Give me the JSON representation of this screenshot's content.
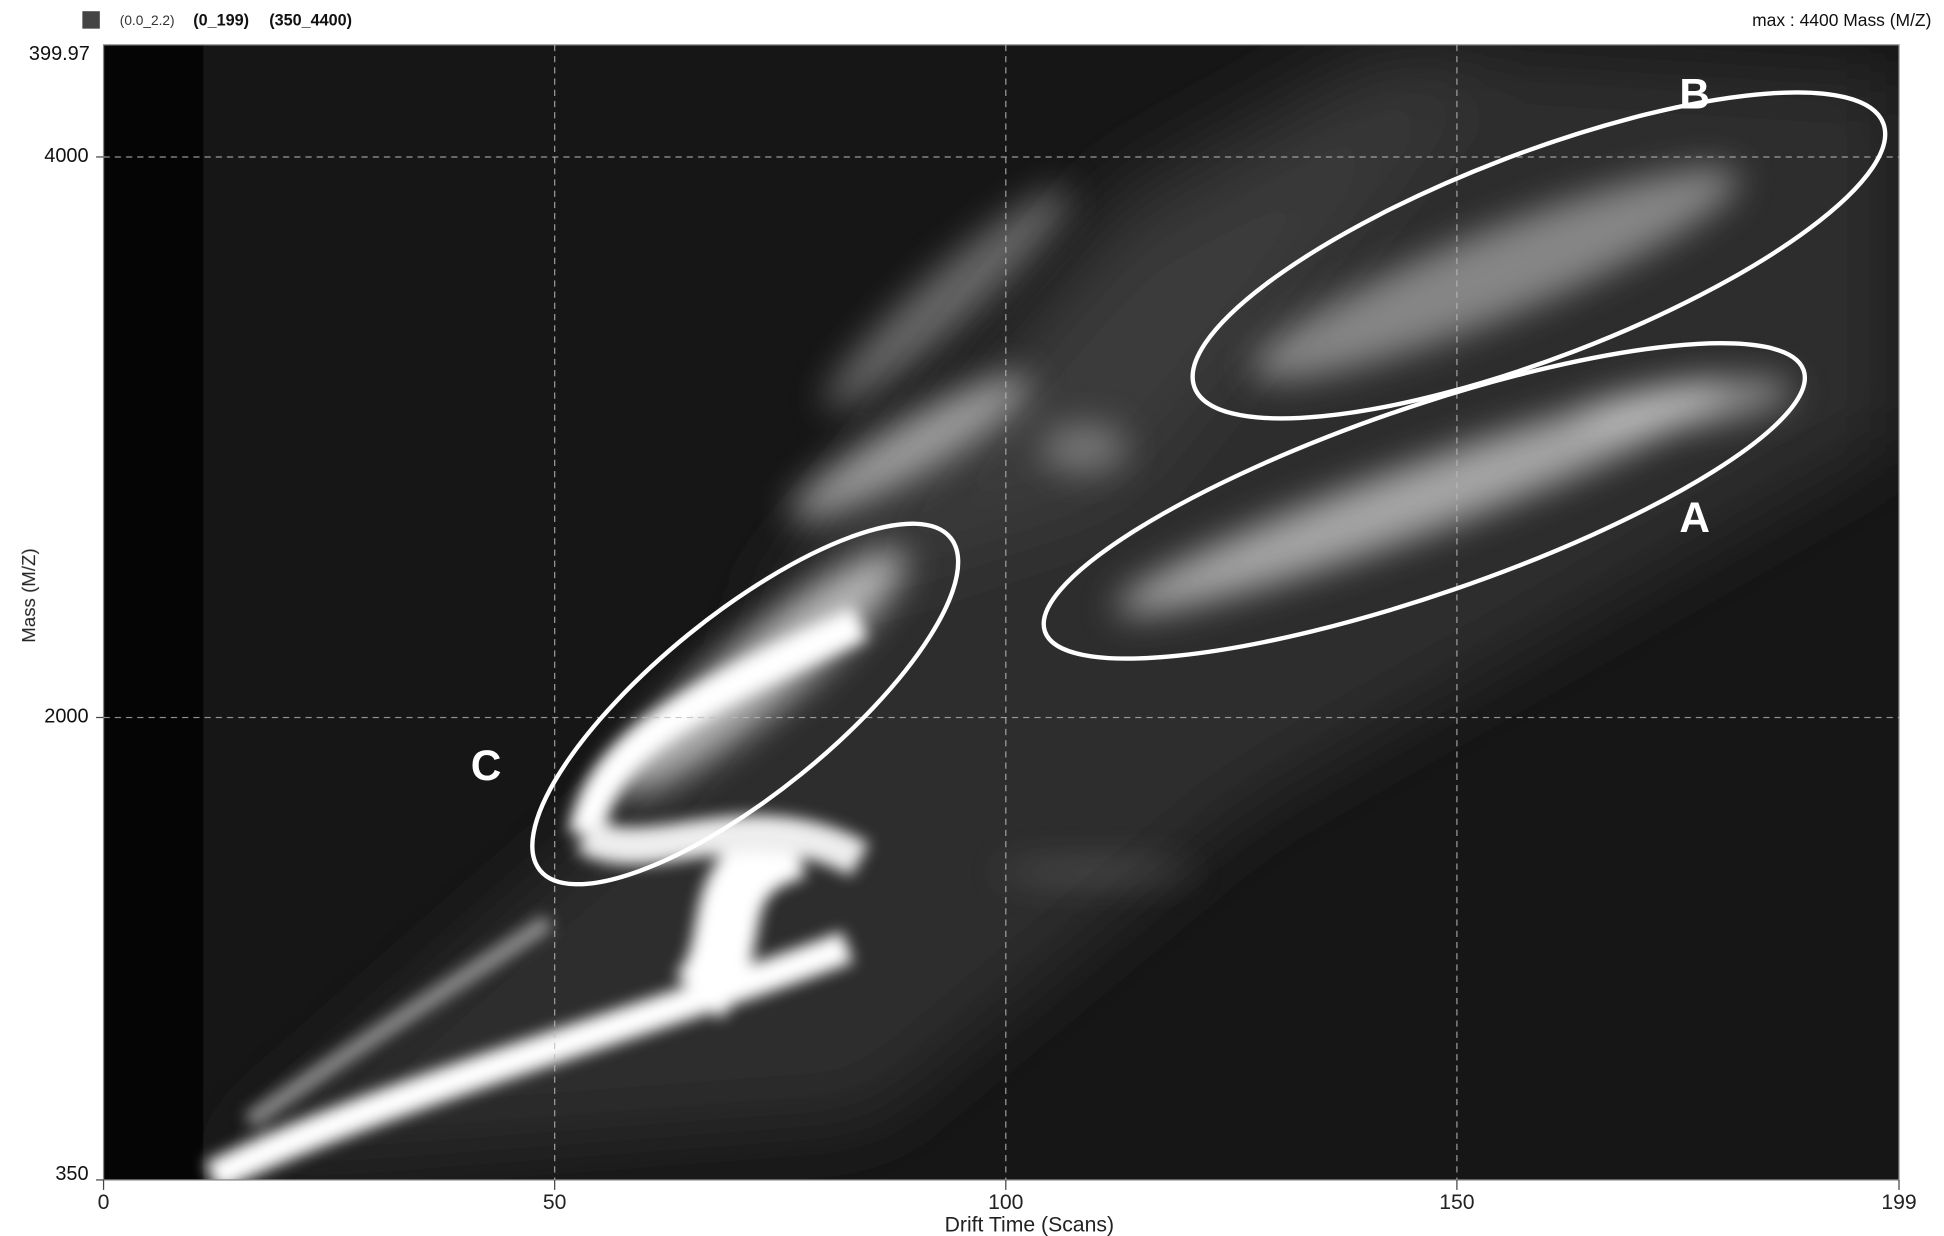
{
  "chart_data": {
    "type": "heatmap",
    "header": {
      "range_labels": [
        "(0.0_2.2)",
        "(0_199)",
        "(350_4400)"
      ],
      "max_label": "max : 4400 Mass (M/Z)"
    },
    "x_label": "Drift Time (Scans)",
    "y_label": "Mass (M/Z)",
    "xlim": [
      0,
      199
    ],
    "xticks": [
      0,
      50,
      100,
      150,
      199
    ],
    "ylim": [
      350,
      4400
    ],
    "yticks": [
      350,
      2000,
      4000
    ],
    "y_top_label": "399.97",
    "grid": true,
    "annotations": [
      "A",
      "B",
      "C"
    ]
  }
}
